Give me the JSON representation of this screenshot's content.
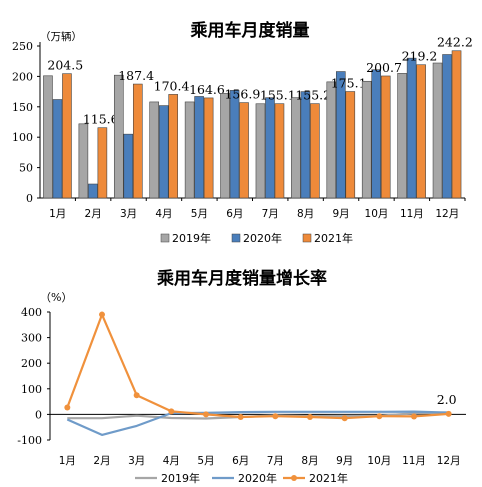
{
  "chart_data": [
    {
      "type": "bar",
      "title": "乘用车月度销量",
      "unit_label": "（万辆）",
      "categories": [
        "1月",
        "2月",
        "3月",
        "4月",
        "5月",
        "6月",
        "7月",
        "8月",
        "9月",
        "10月",
        "11月",
        "12月"
      ],
      "ylim": [
        0,
        250
      ],
      "yticks": [
        "0",
        "50",
        "100",
        "150",
        "200",
        "250"
      ],
      "grid": false,
      "legend_position": "bottom",
      "series": [
        {
          "name": "2019年",
          "values": [
            201,
            122,
            202,
            158,
            158,
            172,
            155,
            165,
            191,
            192,
            205,
            222
          ]
        },
        {
          "name": "2020年",
          "values": [
            162,
            23,
            105,
            152,
            167,
            177,
            165,
            175,
            208,
            211,
            230,
            236
          ]
        },
        {
          "name": "2021年",
          "values": [
            204.5,
            115.6,
            187.4,
            170.4,
            164.6,
            156.9,
            155.1,
            155.2,
            175.1,
            200.7,
            219.2,
            242.2
          ]
        }
      ],
      "data_labels": [
        "204.5",
        "115.6",
        "187.4",
        "170.4",
        "164.6",
        "156.9",
        "155.1",
        "155.2",
        "175.1",
        "200.7",
        "219.2",
        "242.2"
      ]
    },
    {
      "type": "line",
      "title": "乘用车月度销量增长率",
      "unit_label": "（%）",
      "categories": [
        "1月",
        "2月",
        "3月",
        "4月",
        "5月",
        "6月",
        "7月",
        "8月",
        "9月",
        "10月",
        "11月",
        "12月"
      ],
      "ylim": [
        -100,
        400
      ],
      "yticks": [
        "-100",
        "0",
        "100",
        "200",
        "300",
        "400"
      ],
      "grid": false,
      "legend_position": "bottom",
      "series": [
        {
          "name": "2019年",
          "values": [
            -15,
            -15,
            -5,
            -14,
            -16,
            -10,
            -4,
            -7,
            -6,
            -5,
            4,
            8
          ]
        },
        {
          "name": "2020年",
          "values": [
            -20,
            -80,
            -45,
            5,
            6,
            9,
            10,
            10,
            10,
            10,
            11,
            7
          ]
        },
        {
          "name": "2021年",
          "values": [
            27,
            390,
            75,
            12,
            0,
            -10,
            -7,
            -10,
            -15,
            -7,
            -8,
            2
          ]
        }
      ],
      "end_label": "2.0"
    }
  ],
  "colors": {
    "bar_2019": "#a6a6a6",
    "bar_2020": "#4a7ebb",
    "bar_2021": "#ee8a3a",
    "line_2019": "#a6a6a6",
    "line_2020": "#6f9bc9",
    "line_2021": "#f0913c"
  }
}
